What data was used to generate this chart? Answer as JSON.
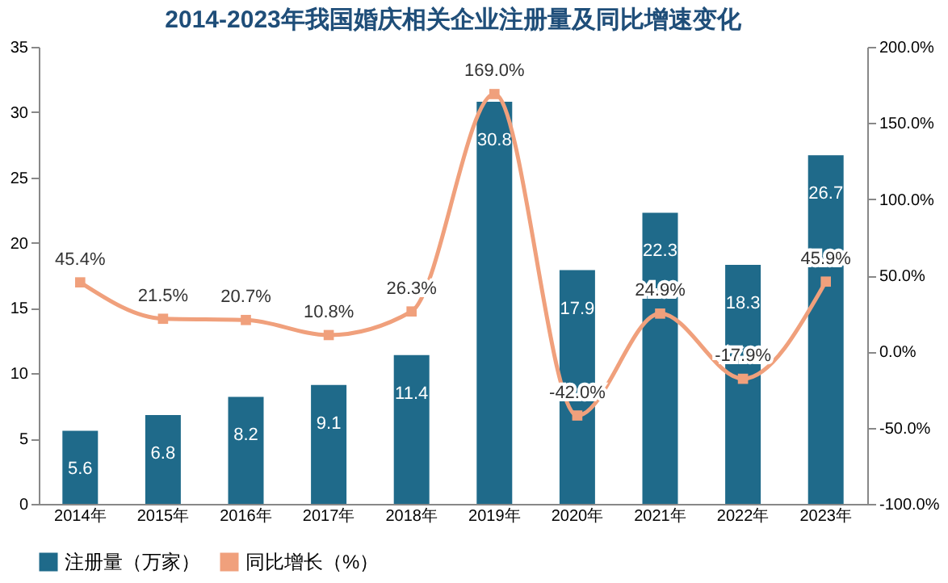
{
  "chart_data": {
    "type": "bar",
    "title": "2014-2023年我国婚庆相关企业注册量及同比增速变化",
    "categories": [
      "2014年",
      "2015年",
      "2016年",
      "2017年",
      "2018年",
      "2019年",
      "2020年",
      "2021年",
      "2022年",
      "2023年"
    ],
    "series": [
      {
        "name": "注册量（万家）",
        "color": "#1f6a8a",
        "values": [
          5.6,
          6.8,
          8.2,
          9.1,
          11.4,
          30.8,
          17.9,
          22.3,
          18.3,
          26.7
        ],
        "value_labels": [
          "5.6",
          "6.8",
          "8.2",
          "9.1",
          "11.4",
          "30.8",
          "17.9",
          "22.3",
          "18.3",
          "26.7"
        ]
      },
      {
        "name": "同比增长（%）",
        "type": "line",
        "axis": "y2",
        "color": "#f0a07c",
        "marker": "square",
        "values": [
          45.4,
          21.5,
          20.7,
          10.8,
          26.3,
          169.0,
          -42.0,
          24.9,
          -17.9,
          45.9
        ],
        "value_labels": [
          "45.4%",
          "21.5%",
          "20.7%",
          "10.8%",
          "26.3%",
          "169.0%",
          "-42.0%",
          "24.9%",
          "-17.9%",
          "45.9%"
        ]
      }
    ],
    "ylim": [
      0,
      35
    ],
    "yticks": [
      0,
      5,
      10,
      15,
      20,
      25,
      30,
      35
    ],
    "y2lim": [
      -100,
      200
    ],
    "y2ticks": [
      {
        "value": -100,
        "label": "-100.0%"
      },
      {
        "value": -50,
        "label": "-50.0%"
      },
      {
        "value": 0,
        "label": "0.0%"
      },
      {
        "value": 50,
        "label": "50.0%"
      },
      {
        "value": 100,
        "label": "100.0%"
      },
      {
        "value": 150,
        "label": "150.0%"
      },
      {
        "value": 200,
        "label": "200.0%"
      }
    ],
    "grid": false,
    "legend": "bottom"
  }
}
